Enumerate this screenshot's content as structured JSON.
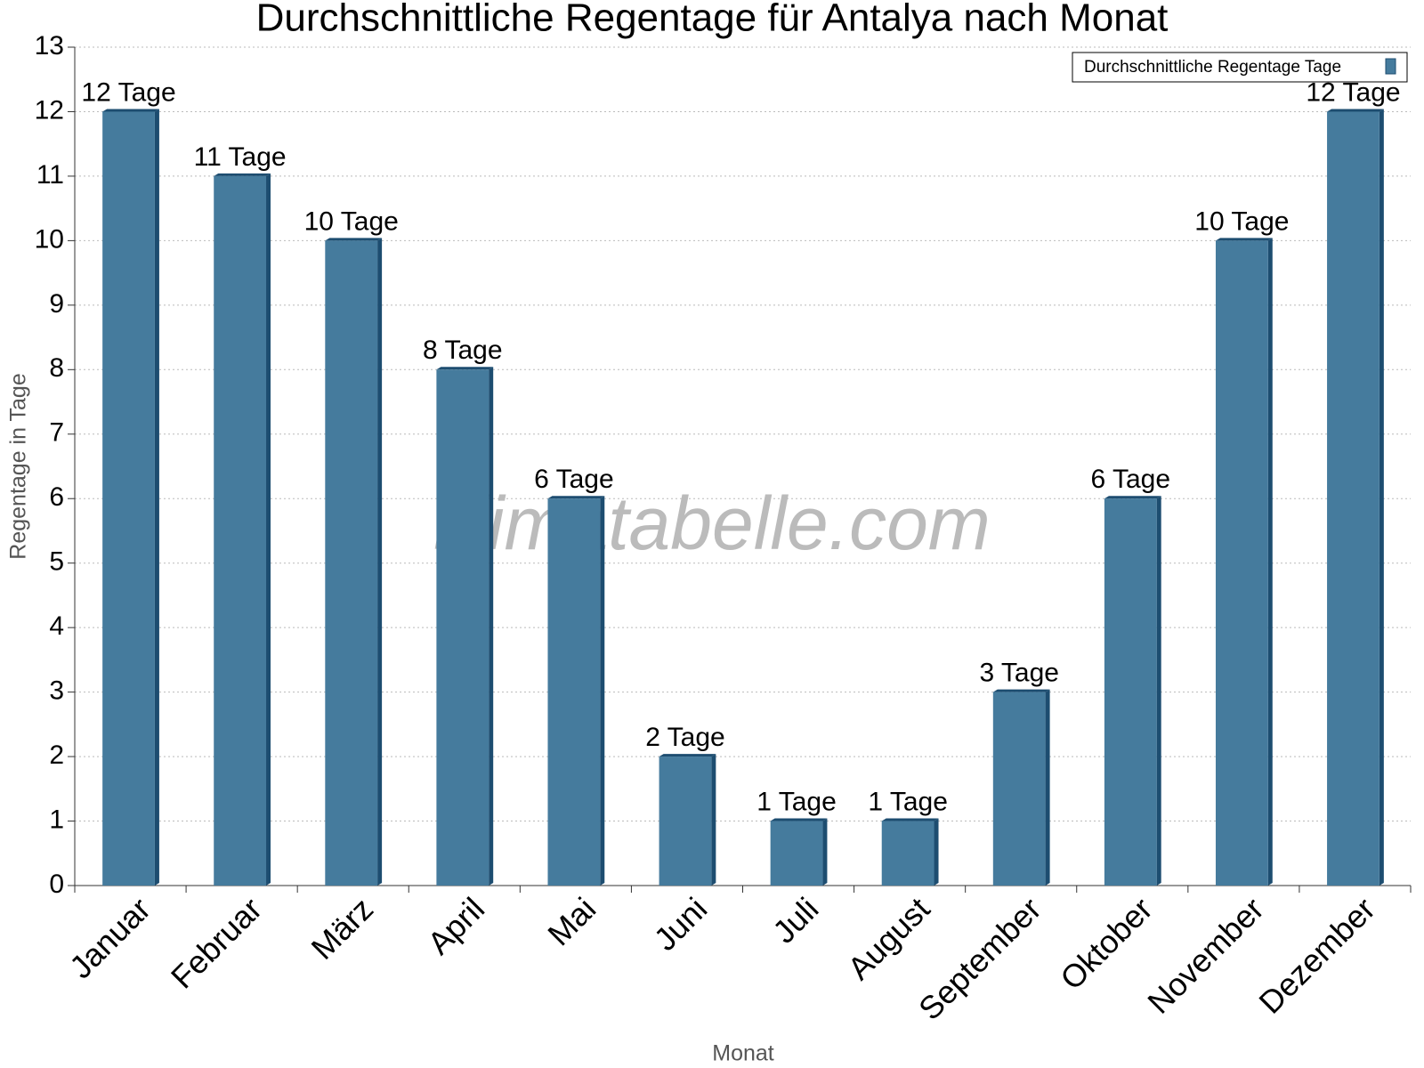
{
  "chart_data": {
    "type": "bar",
    "title": "Durchschnittliche Regentage für Antalya nach Monat",
    "xlabel": "Monat",
    "ylabel": "Regentage in Tage",
    "watermark": "klimatabelle.com",
    "categories": [
      "Januar",
      "Februar",
      "März",
      "April",
      "Mai",
      "Juni",
      "Juli",
      "August",
      "September",
      "Oktober",
      "November",
      "Dezember"
    ],
    "series": [
      {
        "name": "Durchschnittliche Regentage Tage",
        "color": "#457b9d",
        "values": [
          12,
          11,
          10,
          8,
          6,
          2,
          1,
          1,
          3,
          6,
          10,
          12
        ],
        "value_labels": [
          "12 Tage",
          "11 Tage",
          "10 Tage",
          "8 Tage",
          "6 Tage",
          "2 Tage",
          "1 Tage",
          "1 Tage",
          "3 Tage",
          "6 Tage",
          "10 Tage",
          "12 Tage"
        ]
      }
    ],
    "ylim": [
      0,
      13
    ],
    "yticks": [
      0,
      1,
      2,
      3,
      4,
      5,
      6,
      7,
      8,
      9,
      10,
      11,
      12,
      13
    ],
    "grid": true,
    "legend": "upper right"
  }
}
